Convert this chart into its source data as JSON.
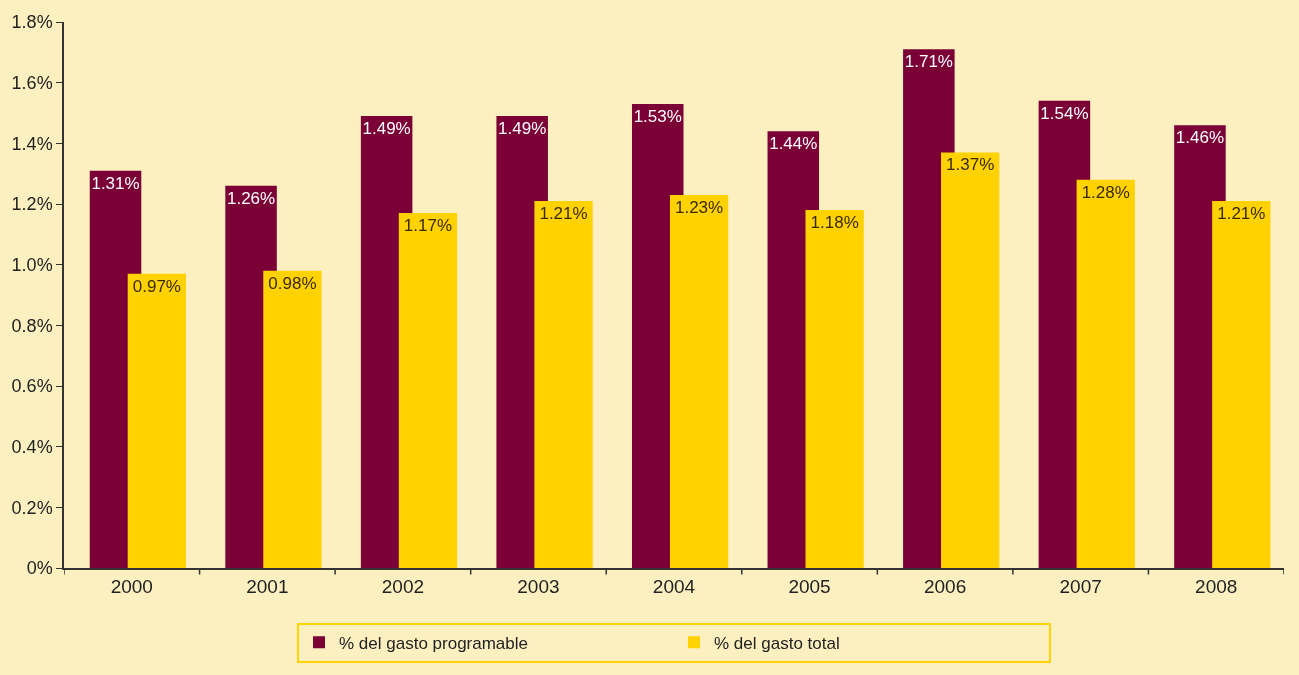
{
  "chart_data": {
    "type": "bar",
    "categories": [
      "2000",
      "2001",
      "2002",
      "2003",
      "2004",
      "2005",
      "2006",
      "2007",
      "2008"
    ],
    "series": [
      {
        "name": "% del gasto programable",
        "color": "#7a0036",
        "values": [
          1.31,
          1.26,
          1.49,
          1.49,
          1.53,
          1.44,
          1.71,
          1.54,
          1.46
        ],
        "value_labels": [
          "1.31%",
          "1.26%",
          "1.49%",
          "1.49%",
          "1.53%",
          "1.44%",
          "1.71%",
          "1.54%",
          "1.46%"
        ]
      },
      {
        "name": "% del gasto total",
        "color": "#ffd200",
        "values": [
          0.97,
          0.98,
          1.17,
          1.21,
          1.23,
          1.18,
          1.37,
          1.28,
          1.21
        ],
        "value_labels": [
          "0.97%",
          "0.98%",
          "1.17%",
          "1.21%",
          "1.23%",
          "1.18%",
          "1.37%",
          "1.28%",
          "1.21%"
        ]
      }
    ],
    "ylim": [
      0,
      1.8
    ],
    "yticks": [
      {
        "value": 0,
        "label": "0%"
      },
      {
        "value": 0.2,
        "label": "0.2%"
      },
      {
        "value": 0.4,
        "label": "0.4%"
      },
      {
        "value": 0.6,
        "label": "0.6%"
      },
      {
        "value": 0.8,
        "label": "0.8%"
      },
      {
        "value": 1.0,
        "label": "1.0%"
      },
      {
        "value": 1.2,
        "label": "1.2%"
      },
      {
        "value": 1.4,
        "label": "1.4%"
      },
      {
        "value": 1.6,
        "label": "1.6%"
      },
      {
        "value": 1.8,
        "label": "1.8%"
      }
    ],
    "grid": false,
    "legend": "bottom"
  }
}
